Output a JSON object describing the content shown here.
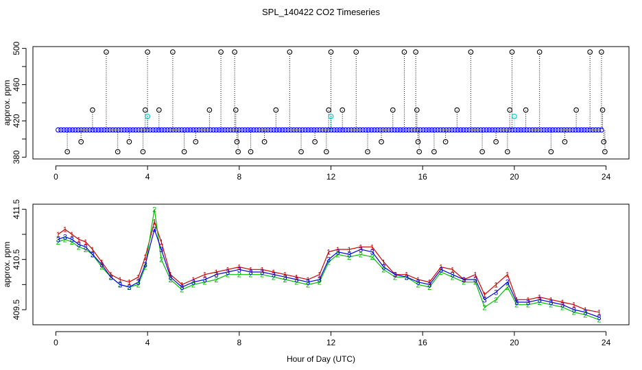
{
  "page": {
    "title": "SPL_140422  CO2 Timeseries",
    "xlabel": "Hour of Day (UTC)"
  },
  "chart_data": [
    {
      "type": "scatter",
      "title": "SPL_140422  CO2 Timeseries",
      "xlabel": "",
      "ylabel": "approx. ppm",
      "xlim": [
        -1,
        25
      ],
      "ylim": [
        378,
        502
      ],
      "xticks": [
        0,
        4,
        8,
        12,
        16,
        20,
        24
      ],
      "yticks": [
        380,
        420,
        460,
        500
      ],
      "grid": false,
      "baseline": 410,
      "series": [
        {
          "marker": "o",
          "color": "#0000ff",
          "role": "normal readings",
          "x_range": [
            0.1,
            23.8
          ],
          "approx_value": 410
        },
        {
          "marker": "o",
          "color": "#000000",
          "role": "outlier readings",
          "points": [
            [
              0.5,
              386
            ],
            [
              1.1,
              397
            ],
            [
              1.6,
              432
            ],
            [
              2.2,
              496
            ],
            [
              2.7,
              386
            ],
            [
              3.2,
              397
            ],
            [
              3.8,
              386
            ],
            [
              3.9,
              432
            ],
            [
              4.0,
              496
            ],
            [
              4.5,
              432
            ],
            [
              5.1,
              496
            ],
            [
              5.6,
              386
            ],
            [
              6.1,
              397
            ],
            [
              6.7,
              432
            ],
            [
              7.2,
              496
            ],
            [
              7.8,
              496
            ],
            [
              7.85,
              432
            ],
            [
              7.9,
              397
            ],
            [
              7.95,
              386
            ],
            [
              8.5,
              386
            ],
            [
              9.1,
              397
            ],
            [
              9.6,
              432
            ],
            [
              10.2,
              496
            ],
            [
              10.7,
              386
            ],
            [
              11.3,
              397
            ],
            [
              11.8,
              386
            ],
            [
              11.9,
              432
            ],
            [
              12.0,
              496
            ],
            [
              12.5,
              432
            ],
            [
              13.1,
              496
            ],
            [
              13.6,
              386
            ],
            [
              14.2,
              397
            ],
            [
              14.7,
              432
            ],
            [
              15.2,
              496
            ],
            [
              15.7,
              496
            ],
            [
              15.75,
              432
            ],
            [
              15.8,
              397
            ],
            [
              15.85,
              386
            ],
            [
              16.5,
              386
            ],
            [
              17.0,
              397
            ],
            [
              17.5,
              432
            ],
            [
              18.1,
              496
            ],
            [
              18.6,
              386
            ],
            [
              19.2,
              397
            ],
            [
              19.7,
              386
            ],
            [
              19.8,
              432
            ],
            [
              19.9,
              496
            ],
            [
              20.5,
              432
            ],
            [
              21.1,
              496
            ],
            [
              21.6,
              386
            ],
            [
              22.2,
              397
            ],
            [
              22.7,
              432
            ],
            [
              23.3,
              496
            ],
            [
              23.8,
              496
            ],
            [
              23.85,
              432
            ],
            [
              23.9,
              397
            ],
            [
              23.95,
              386
            ]
          ]
        },
        {
          "marker": "o",
          "color": "#00cccc",
          "role": "flagged readings",
          "points": [
            [
              4.0,
              425
            ],
            [
              12.0,
              425
            ],
            [
              20.0,
              425
            ]
          ]
        }
      ]
    },
    {
      "type": "line",
      "title": "",
      "xlabel": "Hour of Day (UTC)",
      "ylabel": "approx. ppm",
      "xlim": [
        -1,
        25
      ],
      "ylim": [
        409.2,
        411.6
      ],
      "xticks": [
        0,
        4,
        8,
        12,
        16,
        20,
        24
      ],
      "yticks": [
        409.5,
        410.5,
        411.5
      ],
      "grid": false,
      "series": [
        {
          "label": "1",
          "color": "#cc0000",
          "values": [
            [
              0.1,
              411.0
            ],
            [
              0.4,
              411.1
            ],
            [
              0.7,
              411.0
            ],
            [
              1.0,
              410.9
            ],
            [
              1.3,
              410.85
            ],
            [
              1.6,
              410.7
            ],
            [
              2.0,
              410.45
            ],
            [
              2.4,
              410.2
            ],
            [
              2.8,
              410.1
            ],
            [
              3.2,
              410.05
            ],
            [
              3.6,
              410.15
            ],
            [
              3.9,
              410.55
            ],
            [
              4.3,
              411.25
            ],
            [
              4.6,
              410.85
            ],
            [
              5.0,
              410.2
            ],
            [
              5.5,
              410.0
            ],
            [
              6.0,
              410.1
            ],
            [
              6.5,
              410.2
            ],
            [
              7.0,
              410.25
            ],
            [
              7.5,
              410.3
            ],
            [
              8.0,
              410.35
            ],
            [
              8.5,
              410.3
            ],
            [
              9.0,
              410.3
            ],
            [
              9.5,
              410.25
            ],
            [
              10.0,
              410.2
            ],
            [
              10.5,
              410.15
            ],
            [
              11.0,
              410.1
            ],
            [
              11.5,
              410.2
            ],
            [
              11.9,
              410.65
            ],
            [
              12.3,
              410.7
            ],
            [
              12.8,
              410.7
            ],
            [
              13.3,
              410.75
            ],
            [
              13.8,
              410.75
            ],
            [
              14.3,
              410.45
            ],
            [
              14.8,
              410.2
            ],
            [
              15.3,
              410.2
            ],
            [
              15.8,
              410.1
            ],
            [
              16.3,
              410.05
            ],
            [
              16.8,
              410.35
            ],
            [
              17.3,
              410.3
            ],
            [
              17.8,
              410.1
            ],
            [
              18.3,
              410.2
            ],
            [
              18.7,
              409.8
            ],
            [
              19.2,
              410.0
            ],
            [
              19.7,
              410.2
            ],
            [
              20.1,
              409.7
            ],
            [
              20.6,
              409.7
            ],
            [
              21.1,
              409.75
            ],
            [
              21.6,
              409.7
            ],
            [
              22.1,
              409.65
            ],
            [
              22.6,
              409.6
            ],
            [
              23.1,
              409.5
            ],
            [
              23.7,
              409.45
            ]
          ]
        },
        {
          "label": "2",
          "color": "#00bb00",
          "values": [
            [
              0.1,
              410.85
            ],
            [
              0.4,
              410.9
            ],
            [
              0.7,
              410.85
            ],
            [
              1.0,
              410.75
            ],
            [
              1.3,
              410.7
            ],
            [
              1.6,
              410.6
            ],
            [
              2.0,
              410.35
            ],
            [
              2.4,
              410.15
            ],
            [
              2.8,
              410.0
            ],
            [
              3.2,
              409.95
            ],
            [
              3.6,
              410.0
            ],
            [
              3.9,
              410.35
            ],
            [
              4.3,
              411.5
            ],
            [
              4.6,
              410.5
            ],
            [
              5.0,
              410.1
            ],
            [
              5.5,
              409.9
            ],
            [
              6.0,
              410.0
            ],
            [
              6.5,
              410.05
            ],
            [
              7.0,
              410.1
            ],
            [
              7.5,
              410.2
            ],
            [
              8.0,
              410.2
            ],
            [
              8.5,
              410.2
            ],
            [
              9.0,
              410.2
            ],
            [
              9.5,
              410.15
            ],
            [
              10.0,
              410.1
            ],
            [
              10.5,
              410.05
            ],
            [
              11.0,
              410.0
            ],
            [
              11.5,
              410.05
            ],
            [
              11.9,
              410.45
            ],
            [
              12.3,
              410.6
            ],
            [
              12.8,
              410.55
            ],
            [
              13.3,
              410.6
            ],
            [
              13.8,
              410.55
            ],
            [
              14.3,
              410.3
            ],
            [
              14.8,
              410.15
            ],
            [
              15.3,
              410.15
            ],
            [
              15.8,
              410.0
            ],
            [
              16.3,
              409.95
            ],
            [
              16.8,
              410.25
            ],
            [
              17.3,
              410.15
            ],
            [
              17.8,
              410.05
            ],
            [
              18.3,
              410.05
            ],
            [
              18.7,
              409.55
            ],
            [
              19.2,
              409.7
            ],
            [
              19.7,
              409.95
            ],
            [
              20.1,
              409.6
            ],
            [
              20.6,
              409.6
            ],
            [
              21.1,
              409.65
            ],
            [
              21.6,
              409.6
            ],
            [
              22.1,
              409.55
            ],
            [
              22.6,
              409.45
            ],
            [
              23.1,
              409.4
            ],
            [
              23.7,
              409.3
            ]
          ]
        },
        {
          "label": "3",
          "color": "#0000dd",
          "values": [
            [
              0.1,
              410.9
            ],
            [
              0.4,
              410.95
            ],
            [
              0.7,
              410.9
            ],
            [
              1.0,
              410.8
            ],
            [
              1.3,
              410.75
            ],
            [
              1.6,
              410.6
            ],
            [
              2.0,
              410.4
            ],
            [
              2.4,
              410.15
            ],
            [
              2.8,
              410.0
            ],
            [
              3.2,
              409.95
            ],
            [
              3.6,
              410.05
            ],
            [
              3.9,
              410.4
            ],
            [
              4.3,
              411.1
            ],
            [
              4.6,
              410.7
            ],
            [
              5.0,
              410.15
            ],
            [
              5.5,
              409.95
            ],
            [
              6.0,
              410.05
            ],
            [
              6.5,
              410.1
            ],
            [
              7.0,
              410.2
            ],
            [
              7.5,
              410.25
            ],
            [
              8.0,
              410.3
            ],
            [
              8.5,
              410.25
            ],
            [
              9.0,
              410.25
            ],
            [
              9.5,
              410.2
            ],
            [
              10.0,
              410.15
            ],
            [
              10.5,
              410.1
            ],
            [
              11.0,
              410.05
            ],
            [
              11.5,
              410.1
            ],
            [
              11.9,
              410.5
            ],
            [
              12.3,
              410.65
            ],
            [
              12.8,
              410.6
            ],
            [
              13.3,
              410.7
            ],
            [
              13.8,
              410.65
            ],
            [
              14.3,
              410.35
            ],
            [
              14.8,
              410.2
            ],
            [
              15.3,
              410.15
            ],
            [
              15.8,
              410.05
            ],
            [
              16.3,
              410.0
            ],
            [
              16.8,
              410.3
            ],
            [
              17.3,
              410.2
            ],
            [
              17.8,
              410.1
            ],
            [
              18.3,
              410.1
            ],
            [
              18.7,
              409.7
            ],
            [
              19.2,
              409.85
            ],
            [
              19.7,
              410.05
            ],
            [
              20.1,
              409.65
            ],
            [
              20.6,
              409.65
            ],
            [
              21.1,
              409.7
            ],
            [
              21.6,
              409.65
            ],
            [
              22.1,
              409.6
            ],
            [
              22.6,
              409.5
            ],
            [
              23.1,
              409.45
            ],
            [
              23.7,
              409.35
            ]
          ]
        }
      ]
    }
  ]
}
